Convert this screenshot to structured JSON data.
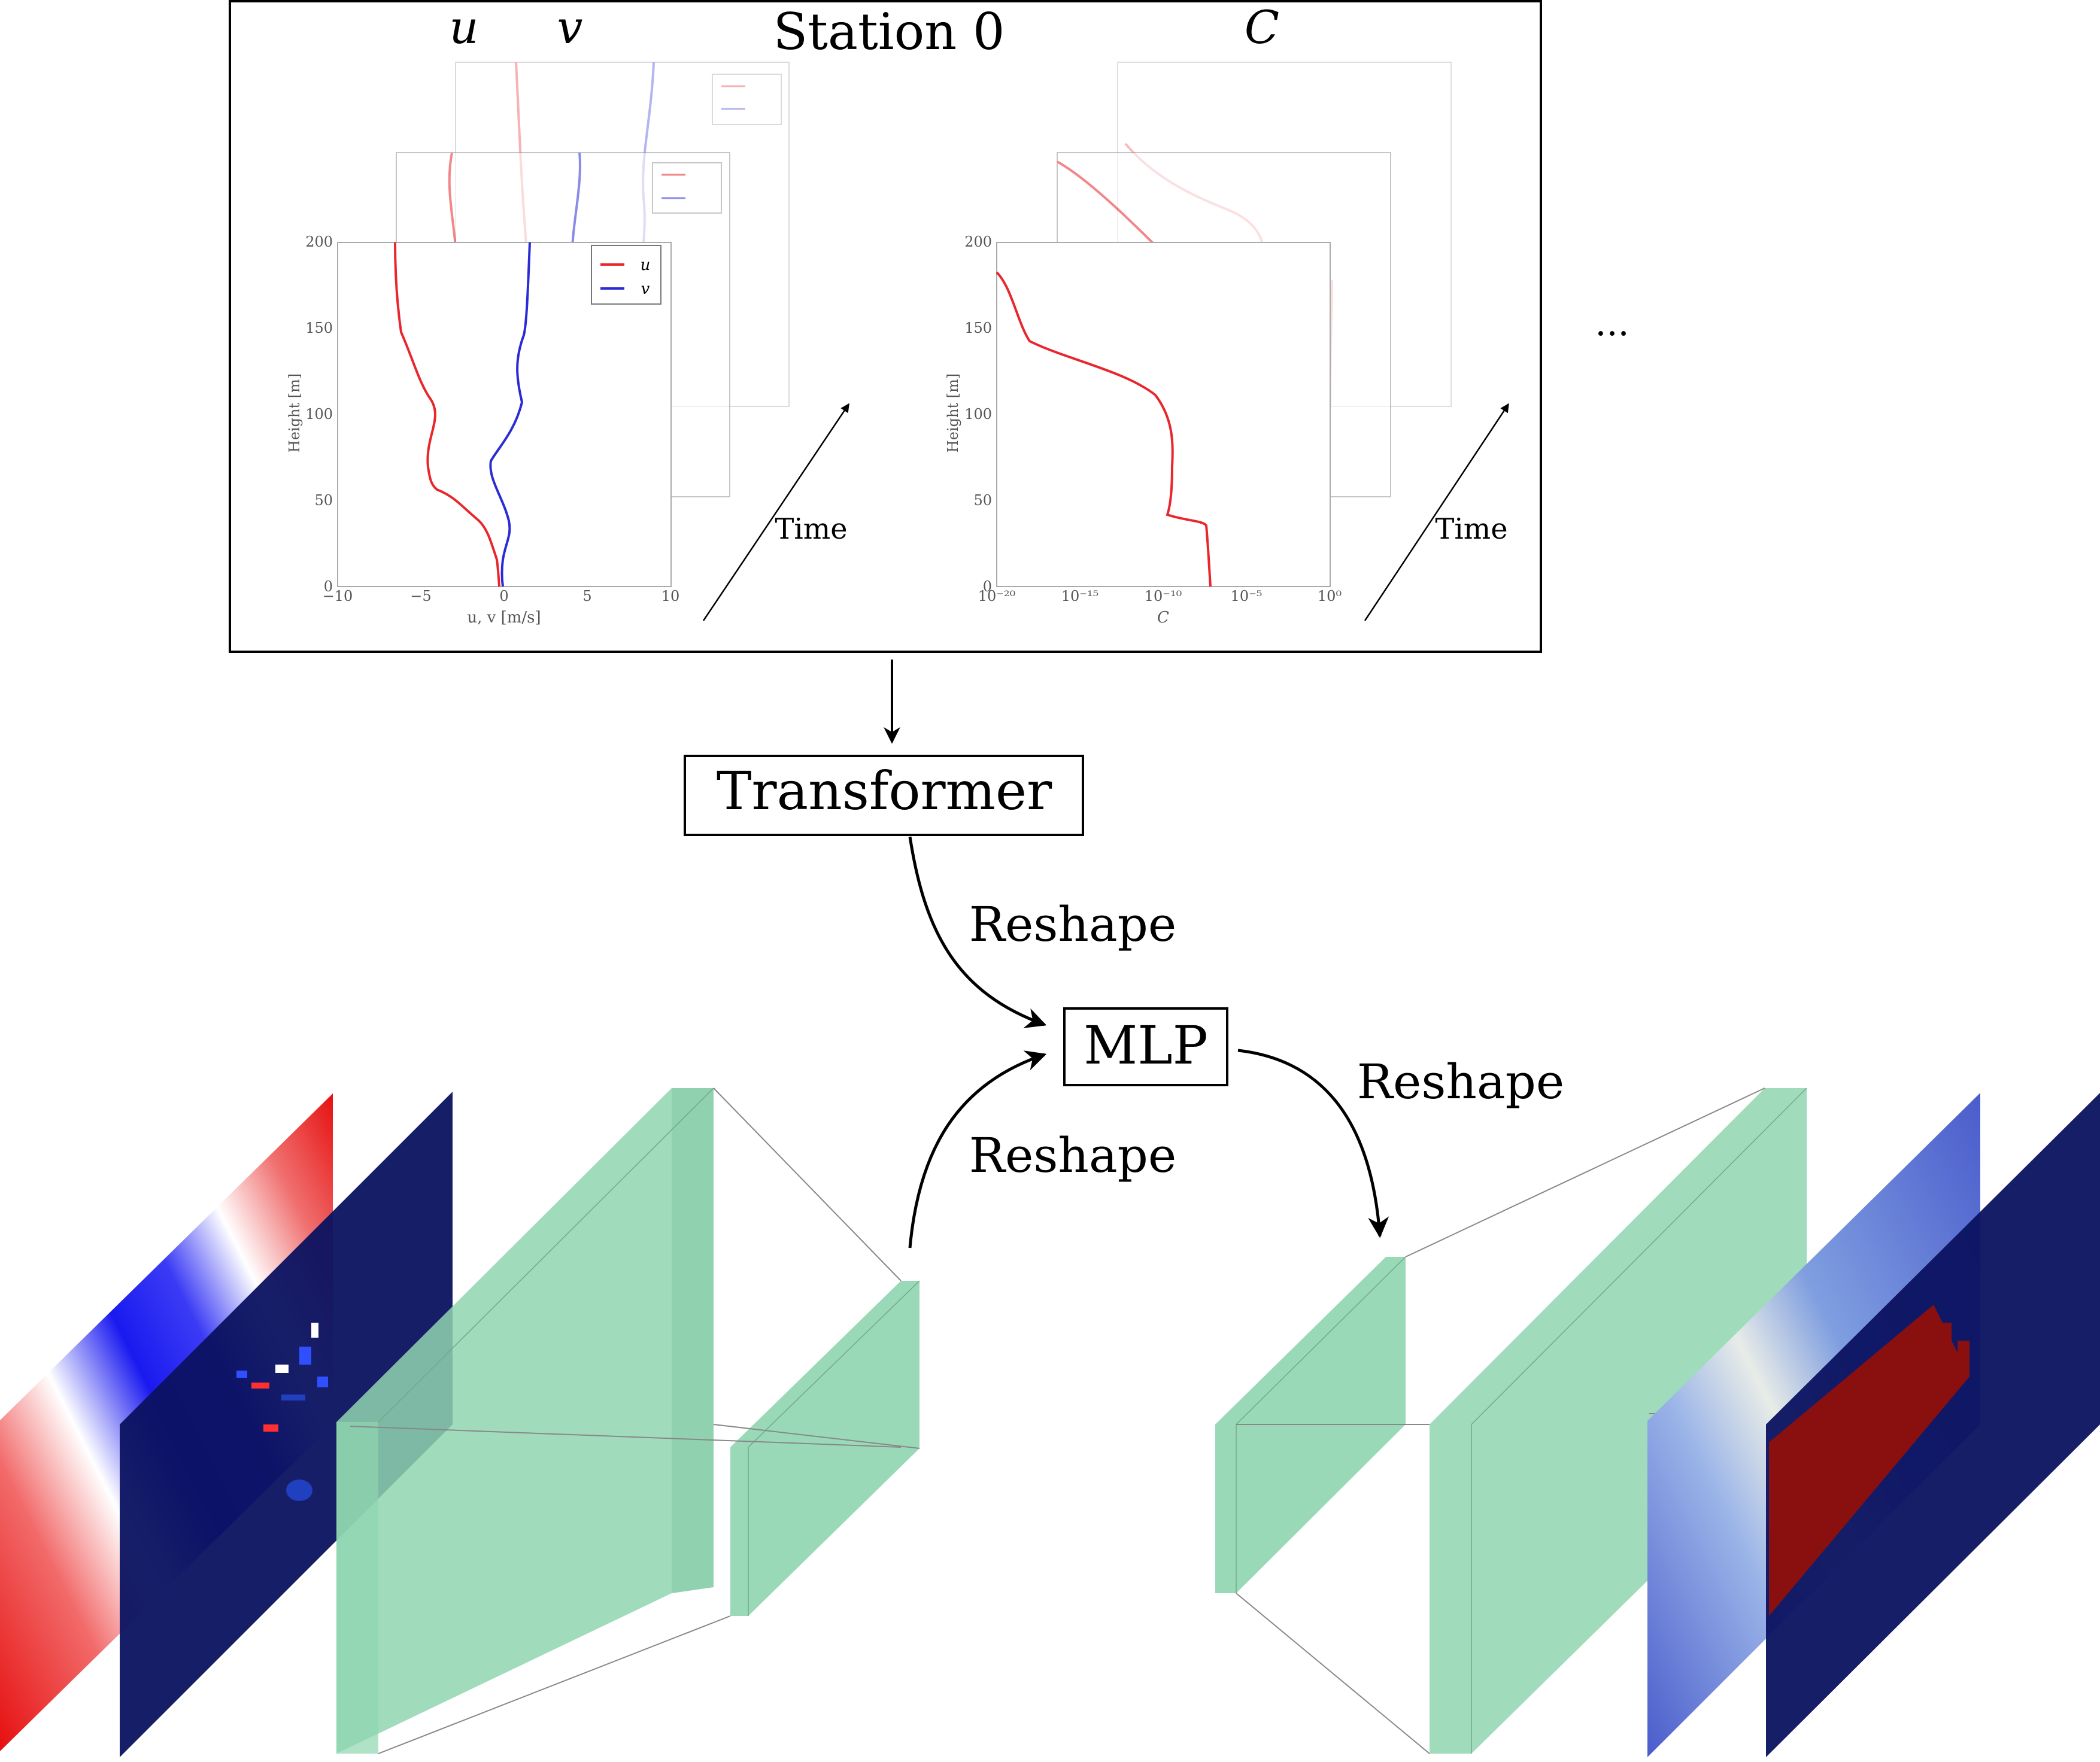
{
  "figure": {
    "station_title": "Station 0",
    "uv_header_u": "u",
    "uv_header_v": "v",
    "c_header": "C",
    "time_label_1": "Time",
    "time_label_2": "Time",
    "ellipsis": "...",
    "transformer_label": "Transformer",
    "mlp_label": "MLP",
    "reshape_1": "Reshape",
    "reshape_2": "Reshape",
    "reshape_3": "Reshape"
  },
  "uv_plot": {
    "ylabel": "Height [m]",
    "xlabel": "u, v [m/s]",
    "y_ticks": [
      "0",
      "50",
      "100",
      "150",
      "200"
    ],
    "x_ticks": [
      "−10",
      "−5",
      "0",
      "5",
      "10"
    ],
    "legend": [
      "u",
      "v"
    ],
    "colors": {
      "u": "#e8262c",
      "v": "#2b2bd6"
    }
  },
  "c_plot": {
    "ylabel": "Height [m]",
    "xlabel": "C",
    "y_ticks": [
      "0",
      "50",
      "100",
      "150",
      "200"
    ],
    "x_ticks": [
      "10⁻²⁰",
      "10⁻¹⁵",
      "10⁻¹⁰",
      "10⁻⁵",
      "10⁰"
    ],
    "color": "#e8262c"
  },
  "colors": {
    "block_fill": "#8fd5b0",
    "dark_plane": "#0b1260",
    "blue_plane": "#3a4fc4",
    "field_red": "#ee1c1c",
    "field_blue": "#1515e8"
  }
}
